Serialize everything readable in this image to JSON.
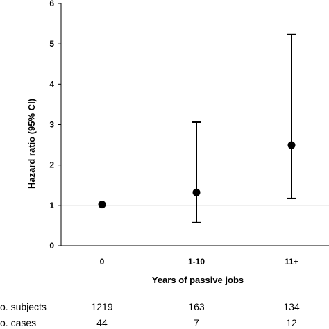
{
  "chart_data": {
    "type": "scatter",
    "title": "",
    "xlabel": "Years of passive jobs",
    "ylabel": "Hazard ratio (95% CI)",
    "ylim": [
      0,
      6
    ],
    "yticks": [
      "0",
      "1",
      "2",
      "3",
      "4",
      "5",
      "6"
    ],
    "reference_line": 1,
    "grid": false,
    "categories": [
      "0",
      "1-10",
      "11+"
    ],
    "points": [
      {
        "x": "0",
        "y": 1.02,
        "lower": null,
        "upper": null
      },
      {
        "x": "1-10",
        "y": 1.32,
        "lower": 0.57,
        "upper": 3.06
      },
      {
        "x": "11+",
        "y": 2.49,
        "lower": 1.17,
        "upper": 5.23
      }
    ],
    "table": {
      "rows": [
        {
          "label": "o. subjects",
          "values": [
            "1219",
            "163",
            "134"
          ]
        },
        {
          "label": "o. cases",
          "values": [
            "44",
            "7",
            "12"
          ]
        }
      ]
    },
    "colors": {
      "marker": "#000000",
      "axis": "#000000",
      "reference": "#d9d9d9"
    }
  }
}
